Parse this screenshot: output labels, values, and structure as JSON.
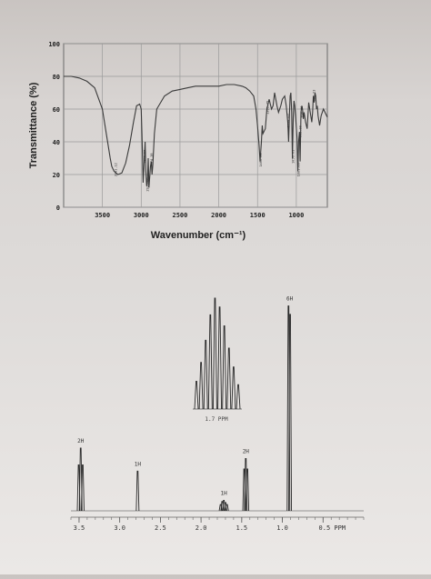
{
  "chart_data": [
    {
      "type": "line",
      "title": "",
      "xlabel": "Wavenumber (cm⁻¹)",
      "ylabel": "Transmittance (%)",
      "xlim": [
        4000,
        600
      ],
      "ylim": [
        0,
        100
      ],
      "x_ticks": [
        "3500",
        "3000",
        "2500",
        "2000",
        "1500",
        "1000"
      ],
      "y_ticks": [
        "0",
        "20",
        "40",
        "60",
        "80",
        "100"
      ],
      "grid": true,
      "series": [
        {
          "x": [
            4000,
            3900,
            3800,
            3700,
            3600,
            3500,
            3450,
            3400,
            3380,
            3350,
            3300,
            3250,
            3200,
            3150,
            3100,
            3060,
            3020,
            3000,
            2990,
            2975,
            2960,
            2950,
            2940,
            2930,
            2920,
            2910,
            2900,
            2880,
            2870,
            2860,
            2850,
            2830,
            2800,
            2700,
            2600,
            2500,
            2400,
            2300,
            2200,
            2100,
            2000,
            1900,
            1800,
            1700,
            1650,
            1600,
            1550,
            1520,
            1500,
            1480,
            1468,
            1450,
            1440,
            1430,
            1400,
            1380,
            1350,
            1320,
            1300,
            1280,
            1250,
            1230,
            1200,
            1180,
            1150,
            1130,
            1110,
            1100,
            1090,
            1080,
            1070,
            1060,
            1050,
            1040,
            1030,
            1020,
            1010,
            990,
            980,
            970,
            960,
            950,
            940,
            930,
            920,
            910,
            900,
            880,
            860,
            840,
            820,
            800,
            790,
            780,
            770,
            760,
            750,
            740,
            730,
            720,
            700,
            680,
            650,
            620,
            600
          ],
          "y": [
            80,
            80,
            79,
            77,
            73,
            60,
            45,
            30,
            25,
            22,
            20,
            21,
            27,
            38,
            52,
            62,
            63,
            60,
            45,
            15,
            30,
            40,
            22,
            13,
            15,
            30,
            12,
            25,
            28,
            20,
            26,
            45,
            60,
            68,
            71,
            72,
            73,
            74,
            74,
            74,
            74,
            75,
            75,
            74,
            73,
            71,
            68,
            60,
            50,
            38,
            28,
            40,
            50,
            45,
            48,
            60,
            66,
            60,
            62,
            70,
            62,
            58,
            62,
            66,
            68,
            62,
            52,
            40,
            55,
            68,
            70,
            58,
            30,
            55,
            65,
            62,
            56,
            42,
            22,
            40,
            46,
            28,
            58,
            62,
            60,
            54,
            58,
            52,
            48,
            64,
            58,
            52,
            58,
            68,
            64,
            70,
            68,
            60,
            62,
            56,
            50,
            56,
            60,
            57,
            55
          ]
        }
      ],
      "peak_labels": [
        {
          "x": 3340,
          "label": "3341.12"
        },
        {
          "x": 2960,
          "label": "2961.27"
        },
        {
          "x": 2930,
          "label": "2931.08"
        },
        {
          "x": 2874,
          "label": "2874.38"
        },
        {
          "x": 1468,
          "label": "1466.80"
        },
        {
          "x": 1380,
          "label": "1380.75"
        },
        {
          "x": 1110,
          "label": "1130.02"
        },
        {
          "x": 1050,
          "label": "1050.61"
        },
        {
          "x": 980,
          "label": "1001.86"
        },
        {
          "x": 960,
          "label": "995.00"
        },
        {
          "x": 940,
          "label": "968.48"
        },
        {
          "x": 780,
          "label": "832.23"
        }
      ]
    },
    {
      "type": "line",
      "title": "",
      "xlabel": "PPM",
      "ylabel": "",
      "xlim": [
        3.6,
        0.0
      ],
      "x_ticks": [
        "3.5",
        "3.0",
        "2.5",
        "2.0",
        "1.5",
        "1.0",
        "0.5 PPM"
      ],
      "x_tick_values": [
        3.5,
        3.0,
        2.5,
        2.0,
        1.5,
        1.0,
        0.5
      ],
      "grid": false,
      "peaks": [
        {
          "ppm": 3.48,
          "label": "2H",
          "lines": [
            {
              "ppm": 3.505,
              "height": 0.22
            },
            {
              "ppm": 3.48,
              "height": 0.3
            },
            {
              "ppm": 3.455,
              "height": 0.22
            }
          ]
        },
        {
          "ppm": 2.78,
          "label": "1H",
          "lines": [
            {
              "ppm": 2.78,
              "height": 0.19
            }
          ]
        },
        {
          "ppm": 1.72,
          "label": "1H",
          "lines": [
            {
              "ppm": 1.76,
              "height": 0.03
            },
            {
              "ppm": 1.74,
              "height": 0.045
            },
            {
              "ppm": 1.72,
              "height": 0.05
            },
            {
              "ppm": 1.7,
              "height": 0.04
            },
            {
              "ppm": 1.68,
              "height": 0.03
            }
          ]
        },
        {
          "ppm": 1.45,
          "label": "2H",
          "lines": [
            {
              "ppm": 1.47,
              "height": 0.2
            },
            {
              "ppm": 1.45,
              "height": 0.25
            },
            {
              "ppm": 1.43,
              "height": 0.2
            }
          ]
        },
        {
          "ppm": 0.91,
          "label": "6H",
          "lines": [
            {
              "ppm": 0.925,
              "height": 0.98
            },
            {
              "ppm": 0.905,
              "height": 0.94
            }
          ]
        }
      ],
      "inset": {
        "label": "1.7 PPM",
        "lines": [
          0.25,
          0.42,
          0.62,
          0.85,
          1.0,
          0.92,
          0.75,
          0.55,
          0.38,
          0.22
        ]
      }
    }
  ]
}
